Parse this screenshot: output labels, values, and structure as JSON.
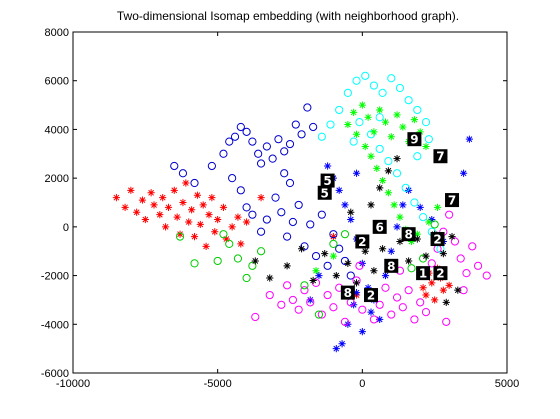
{
  "chart_data": {
    "type": "scatter",
    "title": "Two-dimensional Isomap embedding (with neighborhood graph).",
    "xlabel": "",
    "ylabel": "",
    "xlim": [
      -10000,
      5000
    ],
    "ylim": [
      -6000,
      8000
    ],
    "xticks": [
      -10000,
      -5000,
      0,
      5000
    ],
    "yticks": [
      -6000,
      -4000,
      -2000,
      0,
      2000,
      4000,
      6000,
      8000
    ],
    "grid": false,
    "legend": "none",
    "series": [
      {
        "color": "#ff0000",
        "marker": "star",
        "points": [
          [
            -8500,
            1200
          ],
          [
            -8200,
            800
          ],
          [
            -8000,
            1500
          ],
          [
            -7800,
            600
          ],
          [
            -7600,
            1100
          ],
          [
            -7500,
            300
          ],
          [
            -7300,
            1400
          ],
          [
            -7200,
            900
          ],
          [
            -7000,
            500
          ],
          [
            -6900,
            1200
          ],
          [
            -6800,
            0
          ],
          [
            -6700,
            800
          ],
          [
            -6500,
            1500
          ],
          [
            -6400,
            400
          ],
          [
            -6300,
            -300
          ],
          [
            -6200,
            1000
          ],
          [
            -6100,
            1800
          ],
          [
            -6000,
            200
          ],
          [
            -5900,
            700
          ],
          [
            -5800,
            -400
          ],
          [
            -5700,
            1300
          ],
          [
            -5600,
            100
          ],
          [
            -5500,
            900
          ],
          [
            -5400,
            -800
          ],
          [
            -5300,
            500
          ],
          [
            -5200,
            1200
          ],
          [
            -5100,
            -200
          ],
          [
            -5000,
            300
          ],
          [
            -4800,
            800
          ],
          [
            -4700,
            -500
          ],
          [
            -4500,
            0
          ],
          [
            -4300,
            400
          ],
          [
            -4200,
            -700
          ],
          [
            -4000,
            200
          ],
          [
            -3500,
            1200
          ],
          [
            -1000,
            -400
          ],
          [
            -200,
            -2800
          ],
          [
            2000,
            -2000
          ],
          [
            2200,
            -2800
          ],
          [
            2400,
            -2300
          ],
          [
            2600,
            -1700
          ],
          [
            2800,
            -2600
          ],
          [
            2500,
            -3000
          ],
          [
            2300,
            -1900
          ],
          [
            2700,
            -2100
          ],
          [
            3000,
            -2400
          ],
          [
            2100,
            -2500
          ]
        ]
      },
      {
        "color": "#0000cc",
        "marker": "circle",
        "points": [
          [
            -6500,
            2500
          ],
          [
            -6200,
            2200
          ],
          [
            -5800,
            1800
          ],
          [
            -5200,
            2500
          ],
          [
            -4800,
            3000
          ],
          [
            -4600,
            3500
          ],
          [
            -4400,
            3700
          ],
          [
            -4200,
            4100
          ],
          [
            -4000,
            3900
          ],
          [
            -3800,
            3500
          ],
          [
            -3600,
            3000
          ],
          [
            -3500,
            2600
          ],
          [
            -3300,
            3300
          ],
          [
            -3100,
            2800
          ],
          [
            -2900,
            3600
          ],
          [
            -2700,
            3100
          ],
          [
            -2500,
            3400
          ],
          [
            -2300,
            4200
          ],
          [
            -2100,
            3800
          ],
          [
            -1900,
            4900
          ],
          [
            -1700,
            4100
          ],
          [
            -4500,
            2000
          ],
          [
            -4200,
            1500
          ],
          [
            -4000,
            800
          ],
          [
            -3800,
            500
          ],
          [
            -3500,
            -200
          ],
          [
            -3300,
            300
          ],
          [
            -3000,
            1200
          ],
          [
            -2800,
            600
          ],
          [
            -2600,
            -400
          ],
          [
            -2400,
            200
          ],
          [
            -2200,
            900
          ],
          [
            -2000,
            -800
          ],
          [
            -1800,
            100
          ],
          [
            -1600,
            -1200
          ],
          [
            -1400,
            500
          ],
          [
            -1200,
            -1600
          ],
          [
            -1000,
            -300
          ],
          [
            -800,
            -900
          ],
          [
            -600,
            -1400
          ],
          [
            -400,
            -2000
          ],
          [
            -2500,
            1800
          ],
          [
            -2700,
            2200
          ]
        ]
      },
      {
        "color": "#0000ff",
        "marker": "star",
        "points": [
          [
            -1000,
            2000
          ],
          [
            -800,
            1500
          ],
          [
            -1200,
            2500
          ],
          [
            -200,
            2200
          ],
          [
            -600,
            900
          ],
          [
            -400,
            300
          ],
          [
            -200,
            -500
          ],
          [
            0,
            -1500
          ],
          [
            200,
            -2500
          ],
          [
            400,
            -3000
          ],
          [
            -300,
            -3200
          ],
          [
            -500,
            -4000
          ],
          [
            -700,
            -4800
          ],
          [
            -900,
            -5000
          ],
          [
            600,
            -3800
          ],
          [
            800,
            -2000
          ],
          [
            1000,
            -1000
          ],
          [
            1200,
            0
          ],
          [
            1400,
            900
          ],
          [
            1600,
            1500
          ],
          [
            2000,
            800
          ],
          [
            2400,
            300
          ],
          [
            2800,
            -600
          ],
          [
            3200,
            1200
          ],
          [
            3500,
            2200
          ],
          [
            3700,
            3600
          ],
          [
            -1500,
            -2000
          ],
          [
            -1800,
            -3000
          ],
          [
            0,
            -4300
          ],
          [
            300,
            -3500
          ],
          [
            -200,
            -2700
          ]
        ]
      },
      {
        "color": "#ff00ff",
        "marker": "circle",
        "points": [
          [
            -3700,
            -3700
          ],
          [
            -3200,
            -2800
          ],
          [
            -2800,
            -3200
          ],
          [
            -2600,
            -2400
          ],
          [
            -2400,
            -3000
          ],
          [
            -2200,
            -3400
          ],
          [
            -2000,
            -2600
          ],
          [
            -1800,
            -3100
          ],
          [
            -1600,
            -2300
          ],
          [
            -1400,
            -3600
          ],
          [
            -1200,
            -2800
          ],
          [
            -1000,
            -3300
          ],
          [
            -800,
            -2500
          ],
          [
            -600,
            -3900
          ],
          [
            -400,
            -3100
          ],
          [
            -200,
            -2200
          ],
          [
            0,
            -3400
          ],
          [
            200,
            -2700
          ],
          [
            400,
            -3800
          ],
          [
            600,
            -3200
          ],
          [
            800,
            -2500
          ],
          [
            1000,
            -3600
          ],
          [
            1200,
            -2900
          ],
          [
            1400,
            -3300
          ],
          [
            1600,
            -2600
          ],
          [
            1800,
            -3800
          ],
          [
            2000,
            -3100
          ],
          [
            2200,
            -3500
          ],
          [
            2400,
            -1500
          ],
          [
            2600,
            -900
          ],
          [
            2800,
            -200
          ],
          [
            3000,
            500
          ],
          [
            3200,
            -600
          ],
          [
            3400,
            -1300
          ],
          [
            3600,
            -1900
          ],
          [
            3800,
            -800
          ],
          [
            4000,
            -1600
          ],
          [
            4300,
            -2000
          ],
          [
            3500,
            -2600
          ],
          [
            2900,
            -3900
          ],
          [
            1300,
            -1800
          ],
          [
            -100,
            -1600
          ]
        ]
      },
      {
        "color": "#00ffff",
        "marker": "circle",
        "points": [
          [
            -200,
            6000
          ],
          [
            100,
            6200
          ],
          [
            400,
            5800
          ],
          [
            700,
            5500
          ],
          [
            1000,
            6100
          ],
          [
            1300,
            5700
          ],
          [
            1600,
            5200
          ],
          [
            1900,
            4800
          ],
          [
            2200,
            4300
          ],
          [
            -500,
            5500
          ],
          [
            -800,
            4800
          ],
          [
            -1100,
            4200
          ],
          [
            -1400,
            3700
          ],
          [
            -100,
            4300
          ],
          [
            300,
            3800
          ],
          [
            600,
            3200
          ],
          [
            900,
            2700
          ],
          [
            1200,
            2200
          ],
          [
            1500,
            1600
          ],
          [
            1800,
            1000
          ],
          [
            2100,
            400
          ],
          [
            2400,
            -200
          ],
          [
            2700,
            -900
          ],
          [
            1900,
            2900
          ],
          [
            2300,
            3600
          ],
          [
            600,
            4500
          ],
          [
            -300,
            3500
          ]
        ]
      },
      {
        "color": "#00ff00",
        "marker": "star",
        "points": [
          [
            -500,
            4200
          ],
          [
            -300,
            4700
          ],
          [
            0,
            5000
          ],
          [
            200,
            4500
          ],
          [
            400,
            3900
          ],
          [
            600,
            4800
          ],
          [
            800,
            4300
          ],
          [
            1000,
            3700
          ],
          [
            1200,
            4600
          ],
          [
            1400,
            4100
          ],
          [
            1600,
            3500
          ],
          [
            1800,
            4400
          ],
          [
            2000,
            3900
          ],
          [
            2200,
            3300
          ],
          [
            -200,
            3800
          ],
          [
            100,
            3300
          ],
          [
            300,
            2900
          ],
          [
            500,
            2400
          ],
          [
            700,
            1900
          ],
          [
            900,
            1400
          ],
          [
            1100,
            900
          ],
          [
            1300,
            400
          ],
          [
            1500,
            -100
          ],
          [
            1700,
            -600
          ],
          [
            -1000,
            -1200
          ],
          [
            -1600,
            -1800
          ],
          [
            1900,
            -300
          ],
          [
            2300,
            200
          ],
          [
            2600,
            800
          ]
        ]
      },
      {
        "color": "#00cc00",
        "marker": "circle",
        "points": [
          [
            -6300,
            -400
          ],
          [
            -5800,
            -1500
          ],
          [
            -5000,
            -1400
          ],
          [
            -4800,
            -300
          ],
          [
            -4600,
            -700
          ],
          [
            -4300,
            -1300
          ],
          [
            -4000,
            -2100
          ],
          [
            -3800,
            -1600
          ],
          [
            -3500,
            -1000
          ],
          [
            -2000,
            -2400
          ],
          [
            -1500,
            -3600
          ],
          [
            -1000,
            -700
          ],
          [
            -600,
            -300
          ],
          [
            1700,
            -1700
          ],
          [
            2100,
            -1300
          ],
          [
            2500,
            100
          ]
        ]
      },
      {
        "color": "#000000",
        "marker": "star",
        "points": [
          [
            -3700,
            -1400
          ],
          [
            -3200,
            -2100
          ],
          [
            -2600,
            -1600
          ],
          [
            -2100,
            -900
          ],
          [
            -1700,
            -2200
          ],
          [
            -1300,
            -1100
          ],
          [
            -900,
            -2000
          ],
          [
            -500,
            -1500
          ],
          [
            -200,
            -2300
          ],
          [
            100,
            -1000
          ],
          [
            400,
            -1800
          ],
          [
            700,
            -900
          ],
          [
            1000,
            -1700
          ],
          [
            1300,
            -600
          ],
          [
            1600,
            -1400
          ],
          [
            1900,
            -500
          ],
          [
            2200,
            -1200
          ],
          [
            2500,
            -300
          ],
          [
            2800,
            -1100
          ],
          [
            3100,
            -400
          ],
          [
            3300,
            -2600
          ],
          [
            600,
            1600
          ],
          [
            900,
            2300
          ],
          [
            1200,
            2800
          ],
          [
            300,
            900
          ],
          [
            -400,
            600
          ],
          [
            2900,
            -3100
          ]
        ]
      }
    ],
    "digit_thumbnails": [
      {
        "label": "9",
        "x": 1800,
        "y": 3600
      },
      {
        "label": "7",
        "x": 2700,
        "y": 2900
      },
      {
        "label": "5",
        "x": -1200,
        "y": 1900
      },
      {
        "label": "5",
        "x": -1300,
        "y": 1400
      },
      {
        "label": "7",
        "x": 3100,
        "y": 1100
      },
      {
        "label": "6",
        "x": 600,
        "y": 0
      },
      {
        "label": "8",
        "x": 1600,
        "y": -300
      },
      {
        "label": "2",
        "x": 0,
        "y": -600
      },
      {
        "label": "2",
        "x": 2600,
        "y": -500
      },
      {
        "label": "8",
        "x": 1000,
        "y": -1600
      },
      {
        "label": "1",
        "x": 2100,
        "y": -1900
      },
      {
        "label": "2",
        "x": 2700,
        "y": -1900
      },
      {
        "label": "8",
        "x": -500,
        "y": -2700
      },
      {
        "label": "2",
        "x": 300,
        "y": -2800
      }
    ]
  }
}
